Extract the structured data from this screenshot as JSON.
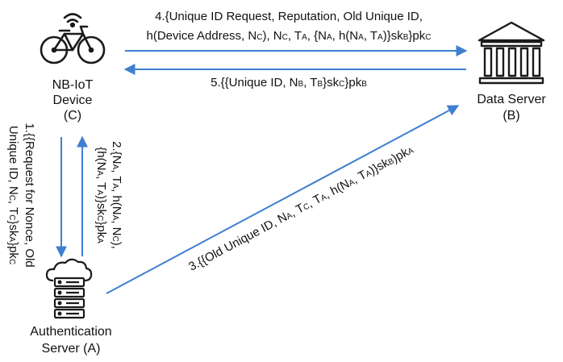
{
  "nodes": {
    "device": {
      "name": "NB-IoT",
      "name2": "Device",
      "id": "(C)",
      "icon": "bicycle-wifi-icon"
    },
    "server": {
      "name": "Data Server",
      "id": "(B)",
      "icon": "bank-building-icon"
    },
    "auth": {
      "name": "Authentication",
      "name2": "Server (A)",
      "icon": "server-cloud-icon"
    }
  },
  "messages": {
    "m1": {
      "line1": [
        {
          "t": "1.{{Request for Nonce, Old"
        }
      ],
      "line2": [
        {
          "t": "Unique ID, N"
        },
        {
          "s": "C"
        },
        {
          "t": ", T"
        },
        {
          "s": "C"
        },
        {
          "t": "}sk"
        },
        {
          "s": "A"
        },
        {
          "t": "}pk"
        },
        {
          "s": "C"
        }
      ]
    },
    "m2": {
      "line1": [
        {
          "t": "2.{N"
        },
        {
          "s": "A"
        },
        {
          "t": ", T"
        },
        {
          "s": "A"
        },
        {
          "t": ", h(N"
        },
        {
          "s": "A"
        },
        {
          "t": ", N"
        },
        {
          "s": "C"
        },
        {
          "t": "),"
        }
      ],
      "line2": [
        {
          "t": "{h(N"
        },
        {
          "s": "A"
        },
        {
          "t": ", T"
        },
        {
          "s": "A"
        },
        {
          "t": ")}sk"
        },
        {
          "s": "C"
        },
        {
          "t": "}pk"
        },
        {
          "s": "A"
        }
      ]
    },
    "m3": {
      "line1": [
        {
          "t": "3.{{Old Unique ID, N"
        },
        {
          "s": "A"
        },
        {
          "t": ", T"
        },
        {
          "s": "C"
        },
        {
          "t": ", T"
        },
        {
          "s": "A"
        },
        {
          "t": ", h(N"
        },
        {
          "s": "A"
        },
        {
          "t": ", T"
        },
        {
          "s": "A"
        },
        {
          "t": ")}sk"
        },
        {
          "s": "B"
        },
        {
          "t": ")pk"
        },
        {
          "s": "A"
        }
      ]
    },
    "m4": {
      "line1": [
        {
          "t": "4.{Unique ID Request, Reputation, Old Unique ID,"
        }
      ],
      "line2": [
        {
          "t": "h(Device Address, N"
        },
        {
          "s": "C"
        },
        {
          "t": "), N"
        },
        {
          "s": "C"
        },
        {
          "t": ", T"
        },
        {
          "s": "A"
        },
        {
          "t": ", {N"
        },
        {
          "s": "A"
        },
        {
          "t": ", h(N"
        },
        {
          "s": "A"
        },
        {
          "t": ", T"
        },
        {
          "s": "A"
        },
        {
          "t": ")}sk"
        },
        {
          "s": "B"
        },
        {
          "t": "}pk"
        },
        {
          "s": "C"
        }
      ]
    },
    "m5": {
      "line1": [
        {
          "t": "5.{{Unique ID, N"
        },
        {
          "s": "B"
        },
        {
          "t": ", T"
        },
        {
          "s": "B"
        },
        {
          "t": "}sk"
        },
        {
          "s": "C"
        },
        {
          "t": "}pk"
        },
        {
          "s": "B"
        }
      ]
    }
  },
  "colors": {
    "arrow": "#3f7fd0",
    "icon": "#1a1a1a"
  }
}
